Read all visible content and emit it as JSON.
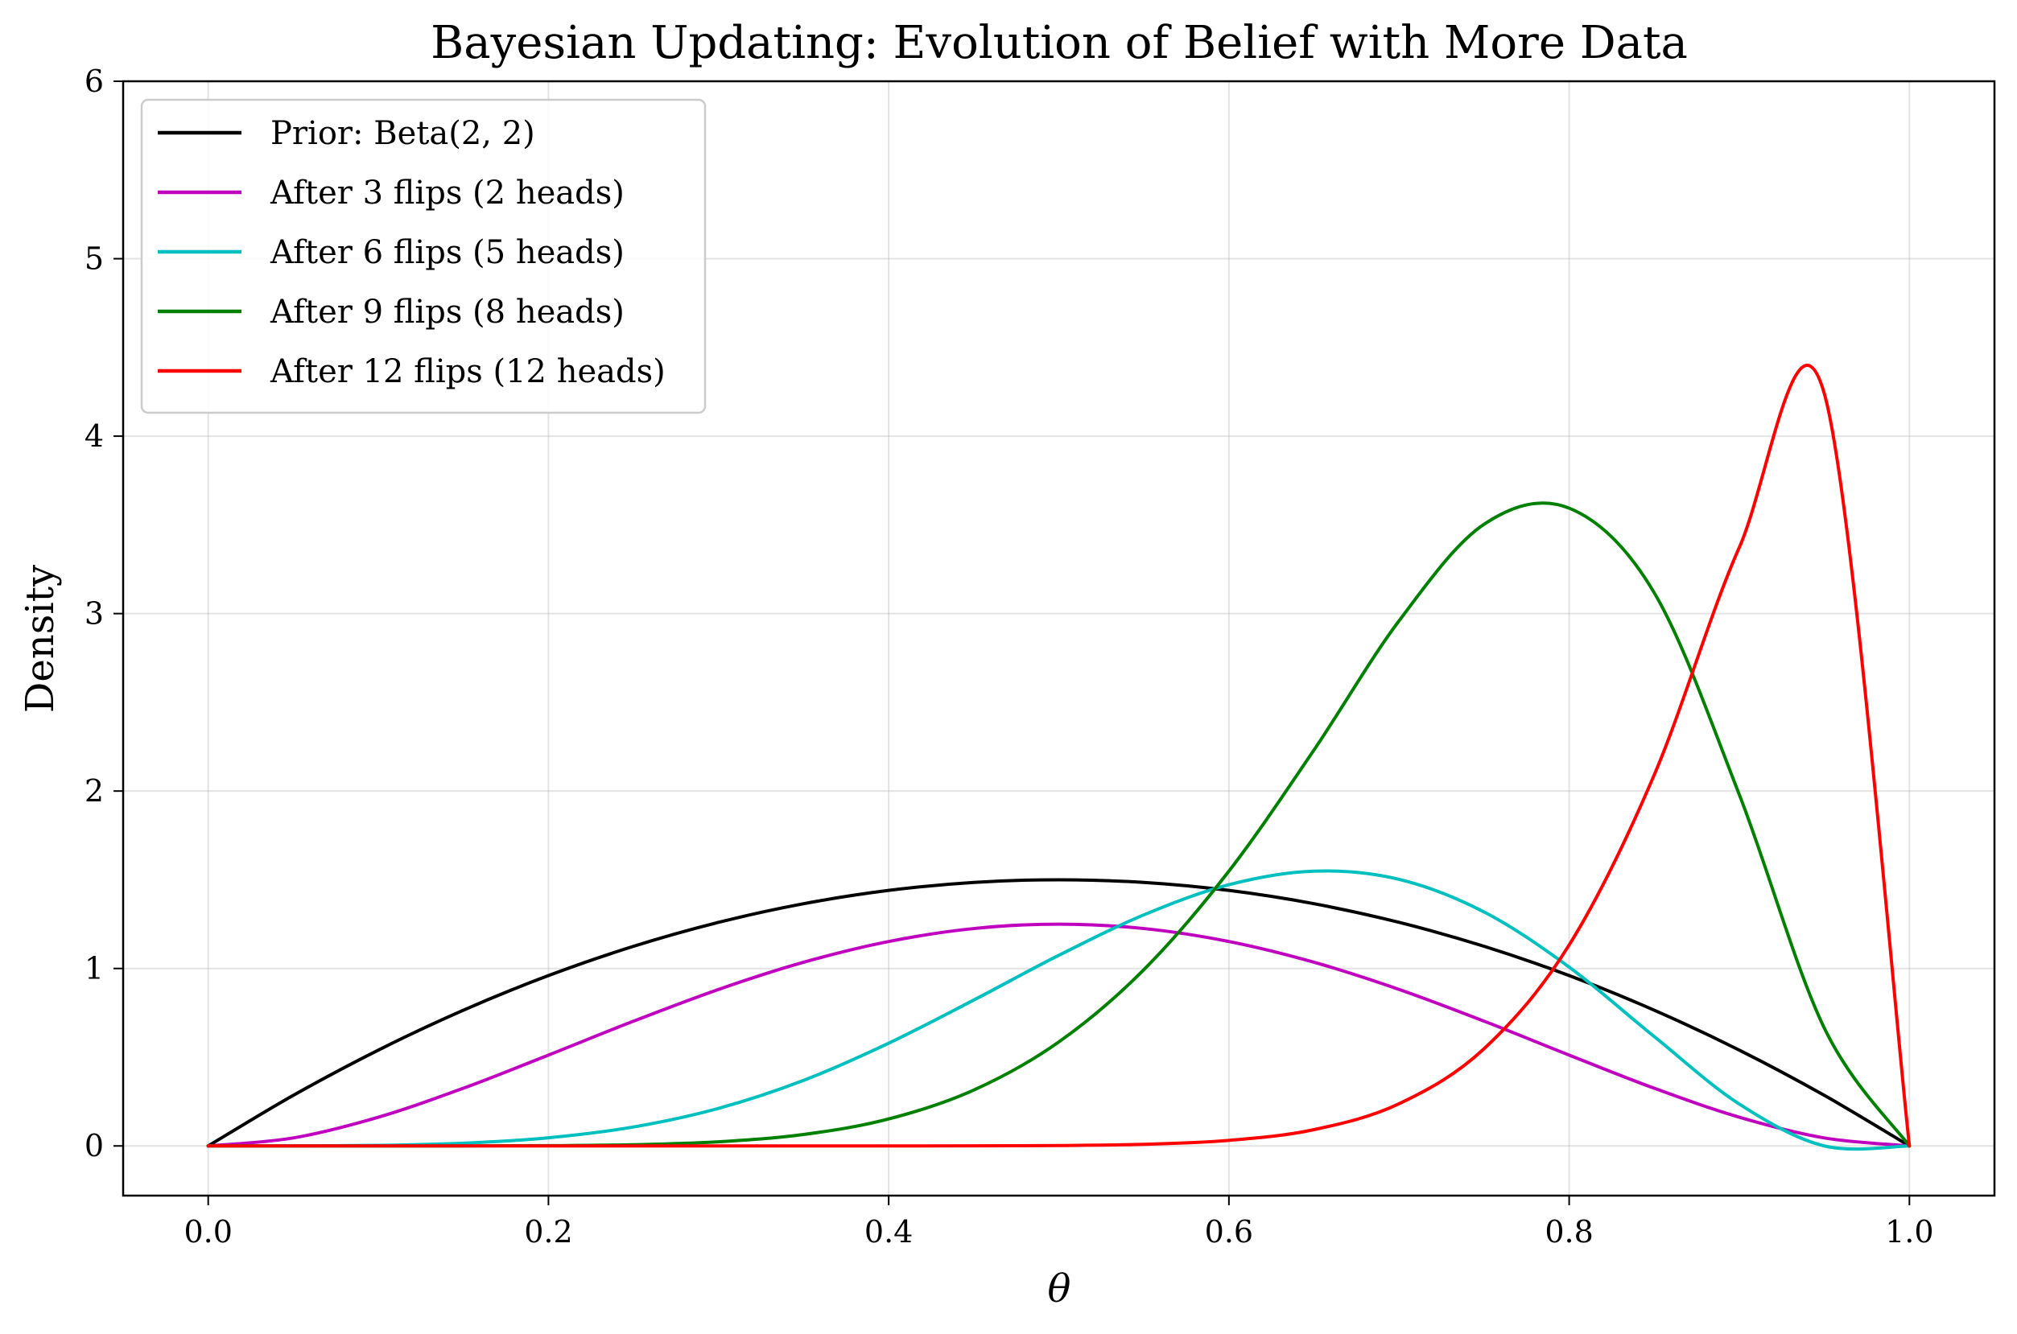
{
  "chart_data": {
    "type": "line",
    "title": "Bayesian Updating: Evolution of Belief with More Data",
    "xlabel": "θ",
    "ylabel": "Density",
    "xlim": [
      -0.05,
      1.05
    ],
    "ylim": [
      -0.28,
      6.0
    ],
    "xticks": [
      0.0,
      0.2,
      0.4,
      0.6,
      0.8,
      1.0
    ],
    "xtick_labels": [
      "0.0",
      "0.2",
      "0.4",
      "0.6",
      "0.8",
      "1.0"
    ],
    "yticks": [
      0,
      1,
      2,
      3,
      4,
      5,
      6
    ],
    "ytick_labels": [
      "0",
      "1",
      "2",
      "3",
      "4",
      "5",
      "6"
    ],
    "grid": true,
    "legend_position": "top-left",
    "x": [
      0.0,
      0.05,
      0.1,
      0.15,
      0.2,
      0.25,
      0.3,
      0.35,
      0.4,
      0.45,
      0.5,
      0.55,
      0.6,
      0.65,
      0.7,
      0.75,
      0.8,
      0.85,
      0.9,
      0.95,
      1.0
    ],
    "series": [
      {
        "name": "Prior: Beta(2, 2)",
        "color": "#000000",
        "values": [
          0.0,
          0.285,
          0.54,
          0.765,
          0.96,
          1.125,
          1.26,
          1.365,
          1.44,
          1.485,
          1.5,
          1.485,
          1.44,
          1.365,
          1.26,
          1.125,
          0.96,
          0.765,
          0.54,
          0.285,
          0.0
        ]
      },
      {
        "name": "After 3 flips (2 heads)",
        "color": "#bf00bf",
        "values": [
          0.0,
          0.0451,
          0.162,
          0.3251,
          0.512,
          0.7031,
          0.882,
          1.0351,
          1.152,
          1.2251,
          1.25,
          1.2251,
          1.152,
          1.0351,
          0.882,
          0.7031,
          0.512,
          0.3251,
          0.162,
          0.0451,
          0.0
        ]
      },
      {
        "name": "After 6 flips (5 heads)",
        "color": "#00bfbf",
        "values": [
          0.0,
          0.0,
          0.0032,
          0.0153,
          0.0461,
          0.1069,
          0.2118,
          0.3695,
          0.5789,
          0.8221,
          1.0742,
          1.3021,
          1.4721,
          1.5485,
          1.5023,
          1.3184,
          1.0079,
          0.6161,
          0.2362,
          0.0,
          0.0
        ]
      },
      {
        "name": "After 9 flips (8 heads)",
        "color": "#008000",
        "values": [
          0.0,
          0.0,
          0.0,
          0.0002,
          0.0015,
          0.0069,
          0.0234,
          0.0646,
          0.152,
          0.3148,
          0.5859,
          0.9934,
          1.5488,
          2.2314,
          2.9591,
          3.5037,
          3.5942,
          3.1175,
          1.9801,
          0.6637,
          0.0
        ]
      },
      {
        "name": "After 12 flips (12 heads)",
        "color": "#ff0000",
        "values": [
          0.0,
          0.0,
          0.0,
          0.0,
          0.0,
          0.0,
          0.0,
          0.0,
          0.0001,
          0.0005,
          0.0024,
          0.0093,
          0.0313,
          0.0918,
          0.2376,
          0.548,
          1.1325,
          2.091,
          3.3724,
          4.2394,
          0.0
        ]
      }
    ]
  }
}
